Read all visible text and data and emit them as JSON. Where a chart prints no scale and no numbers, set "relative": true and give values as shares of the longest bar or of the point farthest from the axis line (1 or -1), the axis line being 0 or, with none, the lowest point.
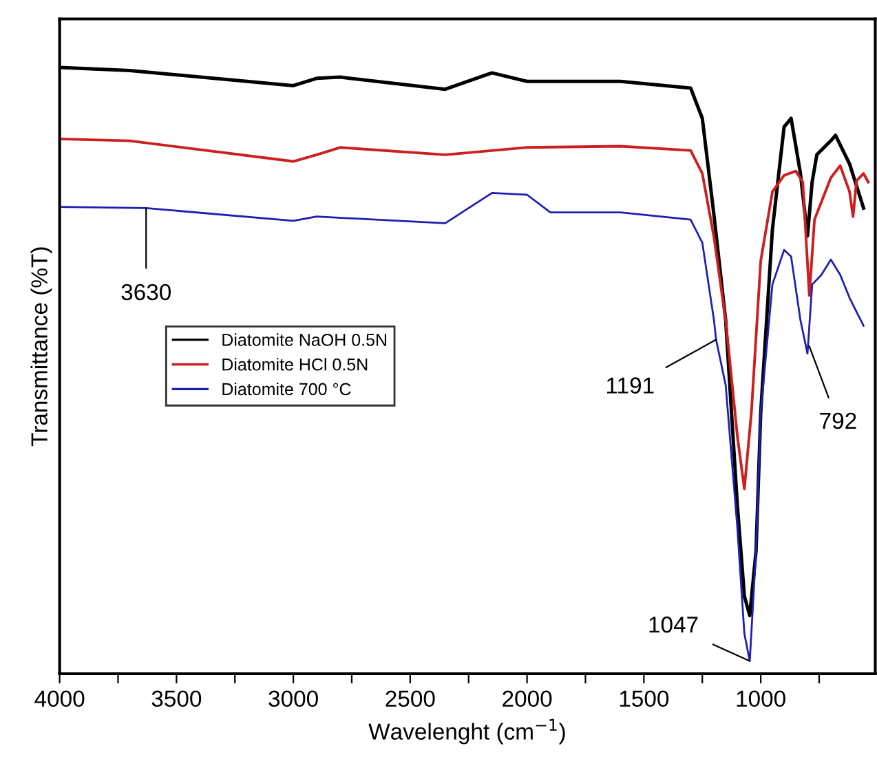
{
  "chart_data": {
    "type": "line",
    "relative": true,
    "xlabel": "Wavelenght (cm$^{−1}$)",
    "ylabel": "Transmittance (%T)",
    "xlim": [
      4000,
      510
    ],
    "xticks": [
      4000,
      {
        "value": 3750,
        "label": null
      },
      3500,
      {
        "value": 3250,
        "label": null
      },
      3000,
      {
        "value": 2750,
        "label": null
      },
      2500,
      {
        "value": 2250,
        "label": null
      },
      2000,
      {
        "value": 1750,
        "label": null
      },
      1500,
      {
        "value": 1250,
        "label": null
      },
      1000,
      {
        "value": 750,
        "label": null
      }
    ],
    "tick_labels": "x",
    "grid": false,
    "legend": "left",
    "marker": "none",
    "line_style": "solid",
    "series": [
      {
        "name": "Diatomite NaOH 0.5N",
        "color": "#000000",
        "x": [
          4000,
          3700,
          3000,
          2900,
          2800,
          2350,
          2150,
          2000,
          1600,
          1300,
          1250,
          1200,
          1150,
          1100,
          1070,
          1047,
          1020,
          1000,
          950,
          900,
          870,
          830,
          800,
          780,
          760,
          700,
          680,
          620,
          560
        ],
        "values": [
          1.0,
          0.995,
          0.97,
          0.982,
          0.984,
          0.964,
          0.991,
          0.977,
          0.977,
          0.966,
          0.916,
          0.756,
          0.583,
          0.278,
          0.128,
          0.096,
          0.203,
          0.431,
          0.733,
          0.902,
          0.916,
          0.825,
          0.722,
          0.811,
          0.856,
          0.879,
          0.888,
          0.841,
          0.768
        ]
      },
      {
        "name": "Diatomite HCl 0.5N",
        "color": "#cc1f1f",
        "x": [
          4000,
          3700,
          3000,
          2900,
          2800,
          2350,
          2000,
          1600,
          1300,
          1250,
          1200,
          1150,
          1100,
          1070,
          1040,
          1000,
          950,
          900,
          850,
          820,
          792,
          770,
          700,
          660,
          620,
          605,
          590,
          560,
          540
        ],
        "values": [
          0.882,
          0.879,
          0.845,
          0.856,
          0.868,
          0.856,
          0.868,
          0.87,
          0.863,
          0.825,
          0.72,
          0.583,
          0.392,
          0.305,
          0.431,
          0.681,
          0.795,
          0.822,
          0.829,
          0.811,
          0.624,
          0.749,
          0.818,
          0.838,
          0.795,
          0.754,
          0.813,
          0.825,
          0.811
        ]
      },
      {
        "name": "Diatomite 700 °C",
        "color": "#1f1fb4",
        "x": [
          4000,
          3630,
          3000,
          2900,
          2350,
          2150,
          2000,
          1900,
          1600,
          1300,
          1250,
          1200,
          1191,
          1150,
          1100,
          1070,
          1047,
          1020,
          1000,
          950,
          900,
          870,
          830,
          800,
          780,
          740,
          700,
          660,
          620,
          560
        ],
        "values": [
          0.77,
          0.768,
          0.747,
          0.754,
          0.743,
          0.793,
          0.79,
          0.761,
          0.761,
          0.749,
          0.711,
          0.583,
          0.551,
          0.476,
          0.241,
          0.066,
          0.021,
          0.203,
          0.431,
          0.642,
          0.699,
          0.688,
          0.583,
          0.528,
          0.642,
          0.658,
          0.683,
          0.658,
          0.62,
          0.574
        ]
      }
    ],
    "annotations": [
      {
        "text": "3630",
        "x": 3630,
        "y": 0.768
      },
      {
        "text": "1191",
        "x": 1191,
        "y": 0.551
      },
      {
        "text": "792",
        "x": 792,
        "y": 0.54
      },
      {
        "text": "1047",
        "x": 1047,
        "y": 0.021
      }
    ]
  }
}
